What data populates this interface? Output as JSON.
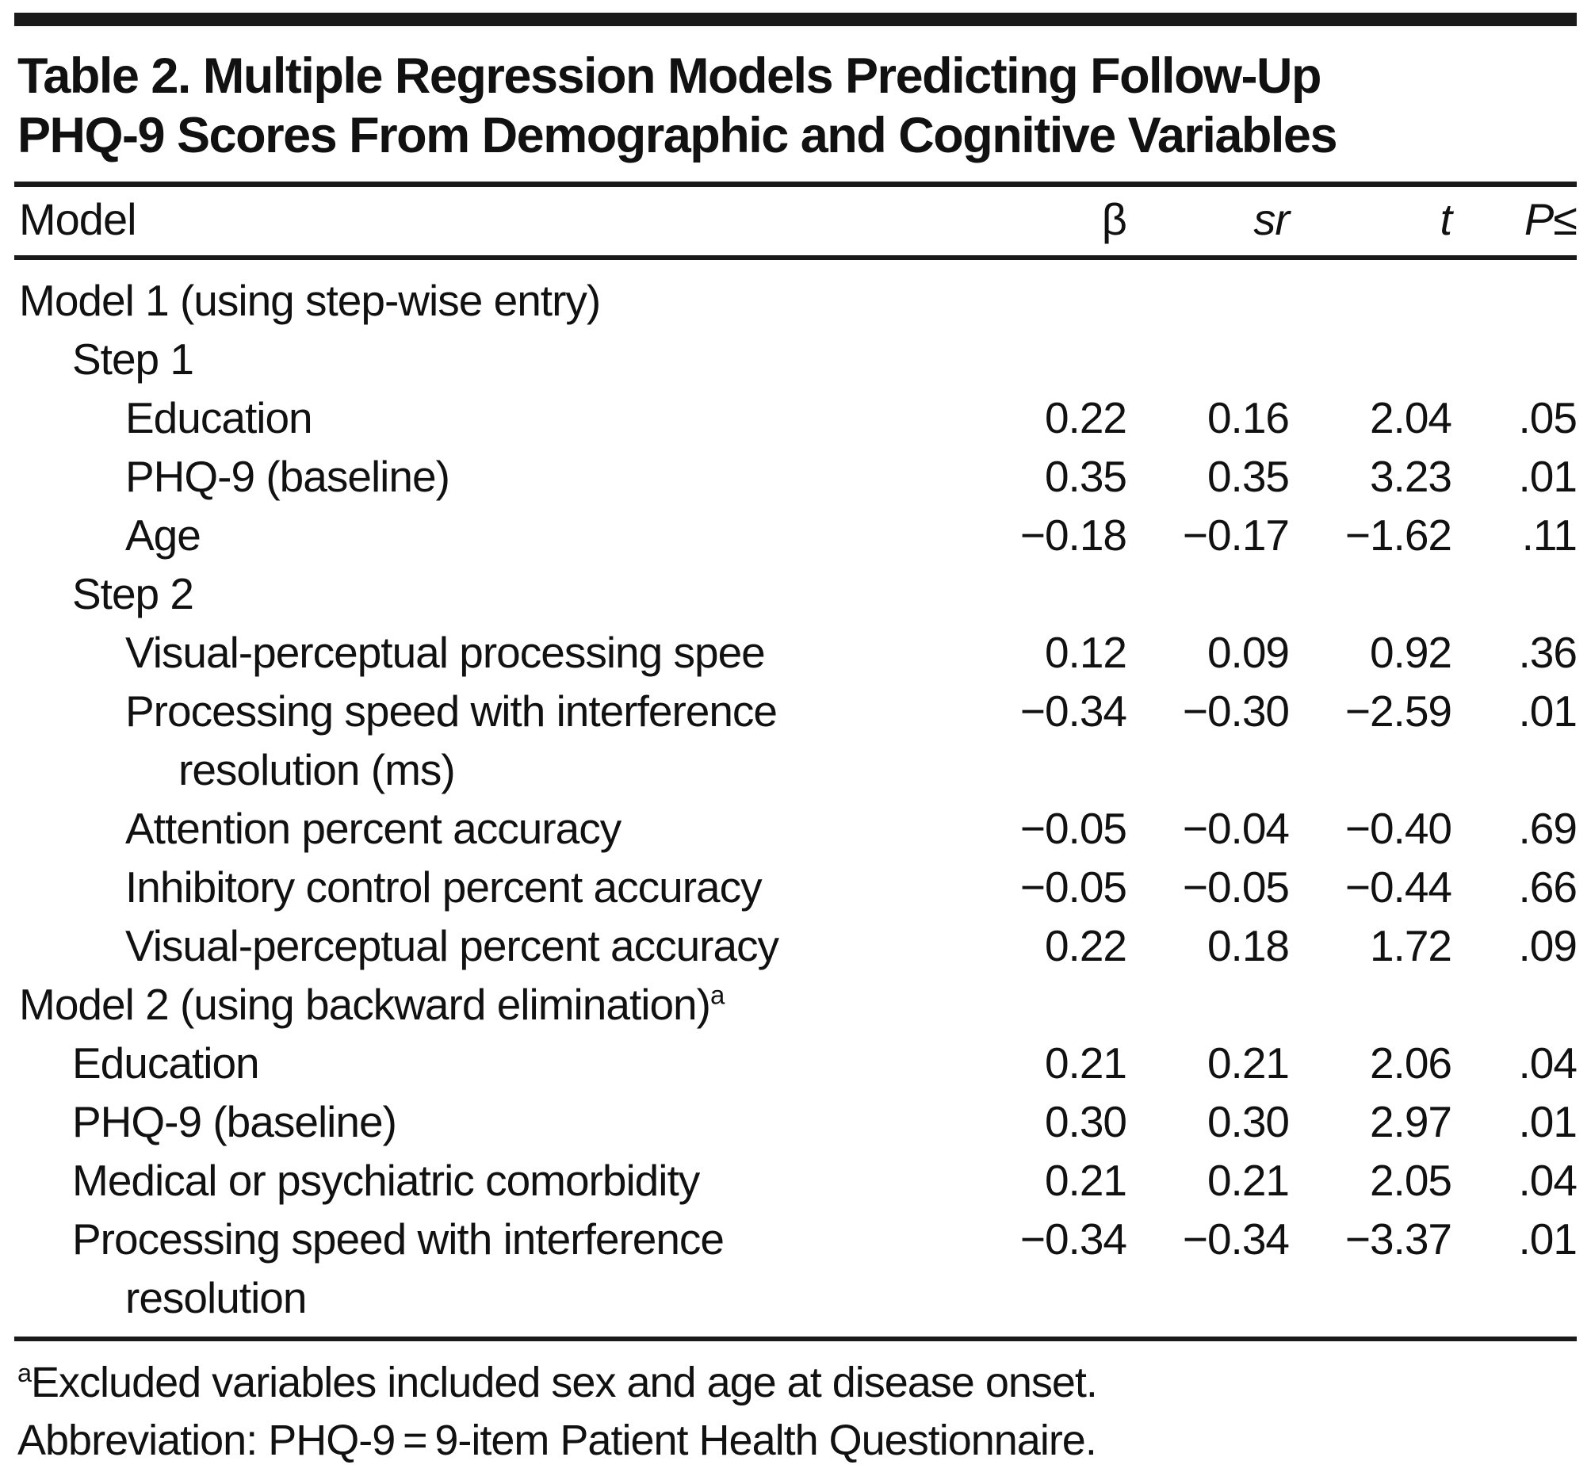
{
  "page": {
    "background": "#ffffff",
    "text_color": "#111111",
    "rule_color": "#1a1a1a"
  },
  "table": {
    "title_line1": "Table 2. Multiple Regression Models Predicting Follow-Up",
    "title_line2": "PHQ-9 Scores From Demographic and Cognitive Variables",
    "columns": {
      "model": "Model",
      "beta": "β",
      "sr": "sr",
      "t": "t",
      "p": "P≤"
    },
    "rows": [
      {
        "label": "Model 1 (using step-wise entry)",
        "indent": 0,
        "beta": "",
        "sr": "",
        "t": "",
        "p": ""
      },
      {
        "label": "Step 1",
        "indent": 1,
        "beta": "",
        "sr": "",
        "t": "",
        "p": ""
      },
      {
        "label": "Education",
        "indent": 2,
        "beta": "0.22",
        "sr": "0.16",
        "t": "2.04",
        "p": ".05"
      },
      {
        "label": "PHQ-9 (baseline)",
        "indent": 2,
        "beta": "0.35",
        "sr": "0.35",
        "t": "3.23",
        "p": ".01"
      },
      {
        "label": "Age",
        "indent": 2,
        "beta": "−0.18",
        "sr": "−0.17",
        "t": "−1.62",
        "p": ".11"
      },
      {
        "label": "Step 2",
        "indent": 1,
        "beta": "",
        "sr": "",
        "t": "",
        "p": ""
      },
      {
        "label": "Visual-perceptual processing spee",
        "indent": 2,
        "beta": "0.12",
        "sr": "0.09",
        "t": "0.92",
        "p": ".36"
      },
      {
        "label": "Processing speed with interference",
        "indent": 2,
        "beta": "−0.34",
        "sr": "−0.30",
        "t": "−2.59",
        "p": ".01"
      },
      {
        "label": "resolution (ms)",
        "indent": 3,
        "beta": "",
        "sr": "",
        "t": "",
        "p": ""
      },
      {
        "label": "Attention percent accuracy",
        "indent": 2,
        "beta": "−0.05",
        "sr": "−0.04",
        "t": "−0.40",
        "p": ".69"
      },
      {
        "label": "Inhibitory control percent accuracy",
        "indent": 2,
        "beta": "−0.05",
        "sr": "−0.05",
        "t": "−0.44",
        "p": ".66"
      },
      {
        "label": "Visual-perceptual percent accuracy",
        "indent": 2,
        "beta": "0.22",
        "sr": "0.18",
        "t": "1.72",
        "p": ".09"
      },
      {
        "label": "Model 2 (using backward elimination)",
        "sup": "a",
        "indent": 0,
        "beta": "",
        "sr": "",
        "t": "",
        "p": ""
      },
      {
        "label": "Education",
        "indent": 1,
        "beta": "0.21",
        "sr": "0.21",
        "t": "2.06",
        "p": ".04"
      },
      {
        "label": "PHQ-9 (baseline)",
        "indent": 1,
        "beta": "0.30",
        "sr": "0.30",
        "t": "2.97",
        "p": ".01"
      },
      {
        "label": "Medical or psychiatric comorbidity",
        "indent": 1,
        "beta": "0.21",
        "sr": "0.21",
        "t": "2.05",
        "p": ".04"
      },
      {
        "label": "Processing speed with interference",
        "indent": 1,
        "beta": "−0.34",
        "sr": "−0.34",
        "t": "−3.37",
        "p": ".01"
      },
      {
        "label": "resolution",
        "indent": 2,
        "beta": "",
        "sr": "",
        "t": "",
        "p": ""
      }
    ]
  },
  "footnotes": [
    {
      "sup": "a",
      "text": "Excluded variables included sex and age at disease onset."
    },
    {
      "sup": "",
      "text": "Abbreviation: PHQ-9 = 9-item Patient Health Questionnaire."
    }
  ]
}
